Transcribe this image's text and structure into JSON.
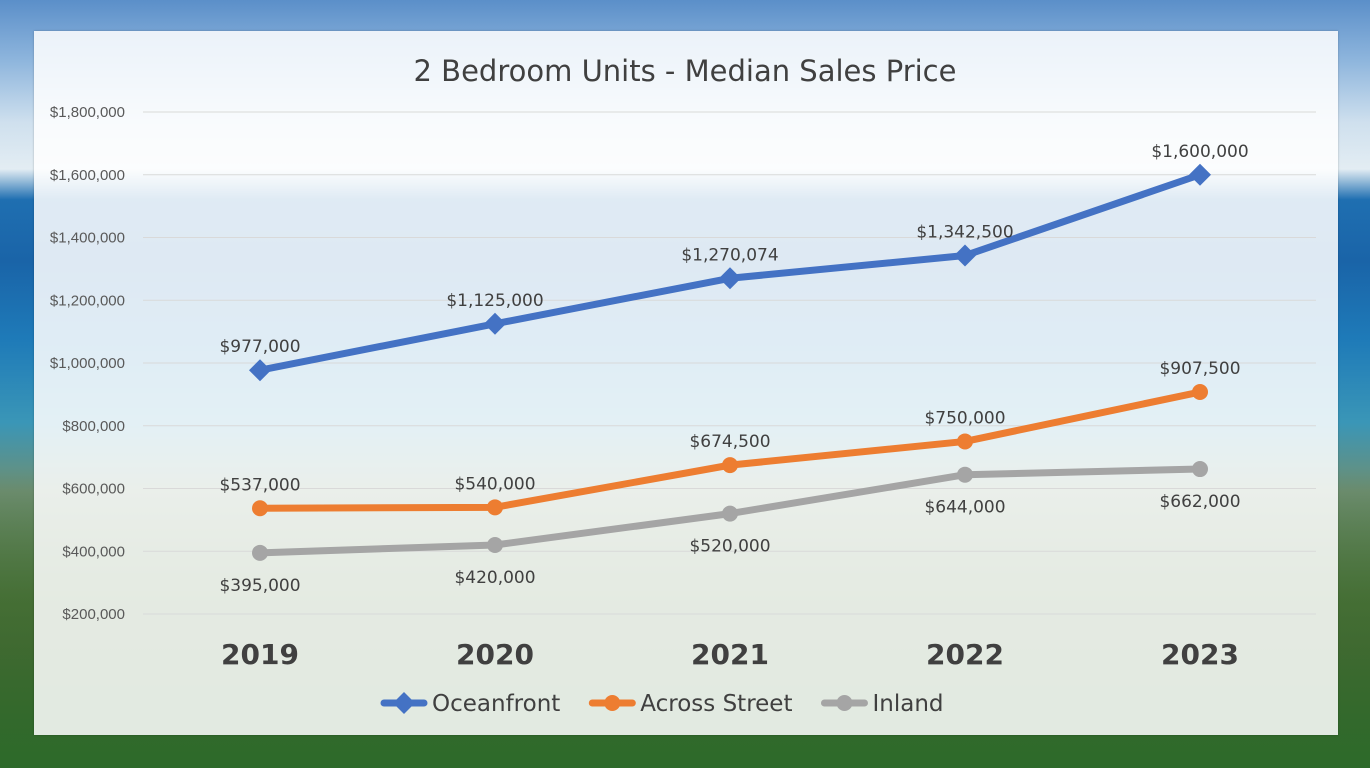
{
  "chart_data": {
    "type": "line",
    "title": "2  Bedroom Units - Median Sales Price",
    "categories": [
      "2019",
      "2020",
      "2021",
      "2022",
      "2023"
    ],
    "ylim": [
      200000,
      1800000
    ],
    "y_ticks": [
      "$1,800,000",
      "$1,600,000",
      "$1,400,000",
      "$1,200,000",
      "$1,000,000",
      "$800,000",
      "$600,000",
      "$400,000",
      "$200,000"
    ],
    "grid": true,
    "legend_position": "bottom",
    "series": [
      {
        "name": "Oceanfront",
        "color": "#4472c4",
        "marker": "diamond",
        "values": [
          977000,
          1125000,
          1270074,
          1342500,
          1600000
        ],
        "labels": [
          "$977,000",
          "$1,125,000",
          "$1,270,074",
          "$1,342,500",
          "$1,600,000"
        ],
        "label_position": "above"
      },
      {
        "name": "Across Street",
        "color": "#ed7d31",
        "marker": "circle",
        "values": [
          537000,
          540000,
          674500,
          750000,
          907500
        ],
        "labels": [
          "$537,000",
          "$540,000",
          "$674,500",
          "$750,000",
          "$907,500"
        ],
        "label_position": "above"
      },
      {
        "name": "Inland",
        "color": "#a5a5a5",
        "marker": "circle",
        "values": [
          395000,
          420000,
          520000,
          644000,
          662000
        ],
        "labels": [
          "$395,000",
          "$420,000",
          "$520,000",
          "$644,000",
          "$662,000"
        ],
        "label_position": "below"
      }
    ]
  }
}
